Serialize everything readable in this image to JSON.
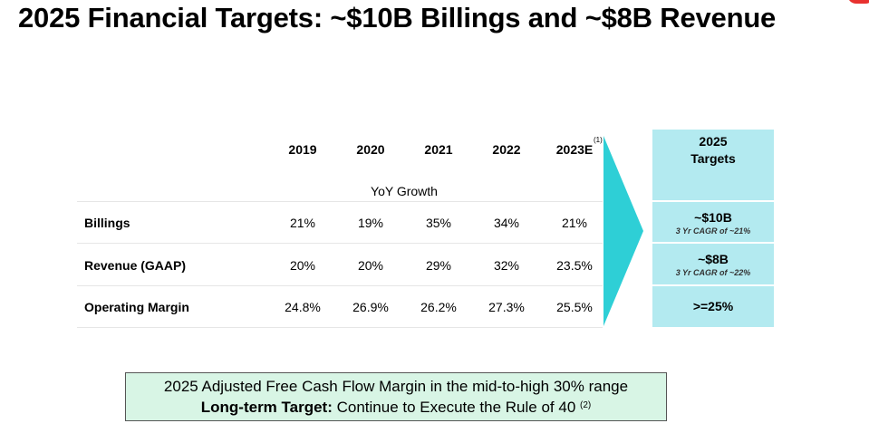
{
  "title": "2025 Financial Targets: ~$10B Billings and ~$8B Revenue",
  "table": {
    "years": [
      "2019",
      "2020",
      "2021",
      "2022",
      "2023E"
    ],
    "estimate_footnote": "(1)",
    "subheader": "YoY Growth",
    "rows": [
      {
        "label": "Billings",
        "values": [
          "21%",
          "19%",
          "35%",
          "34%",
          "21%"
        ]
      },
      {
        "label": "Revenue (GAAP)",
        "values": [
          "20%",
          "20%",
          "29%",
          "32%",
          "23.5%"
        ]
      },
      {
        "label": "Operating Margin",
        "values": [
          "24.8%",
          "26.9%",
          "26.2%",
          "27.3%",
          "25.5%"
        ]
      }
    ]
  },
  "targets": {
    "header_line1": "2025",
    "header_line2": "Targets",
    "billings": {
      "value": "~$10B",
      "note": "3 Yr CAGR of ~21%"
    },
    "revenue": {
      "value": "~$8B",
      "note": "3 Yr CAGR of ~22%"
    },
    "operating_margin": {
      "value": ">=25%"
    }
  },
  "note": {
    "line1": "2025 Adjusted Free Cash Flow Margin in the mid-to-high 30% range",
    "line2_bold": "Long-term Target:",
    "line2_text": " Continue to Execute the Rule of 40",
    "line2_footnote": "(2)"
  },
  "colors": {
    "arrow": "#2ecfd6",
    "targets_bg": "#b3eaf0",
    "note_bg": "#d8f5e5",
    "accent": "#e8312f"
  }
}
